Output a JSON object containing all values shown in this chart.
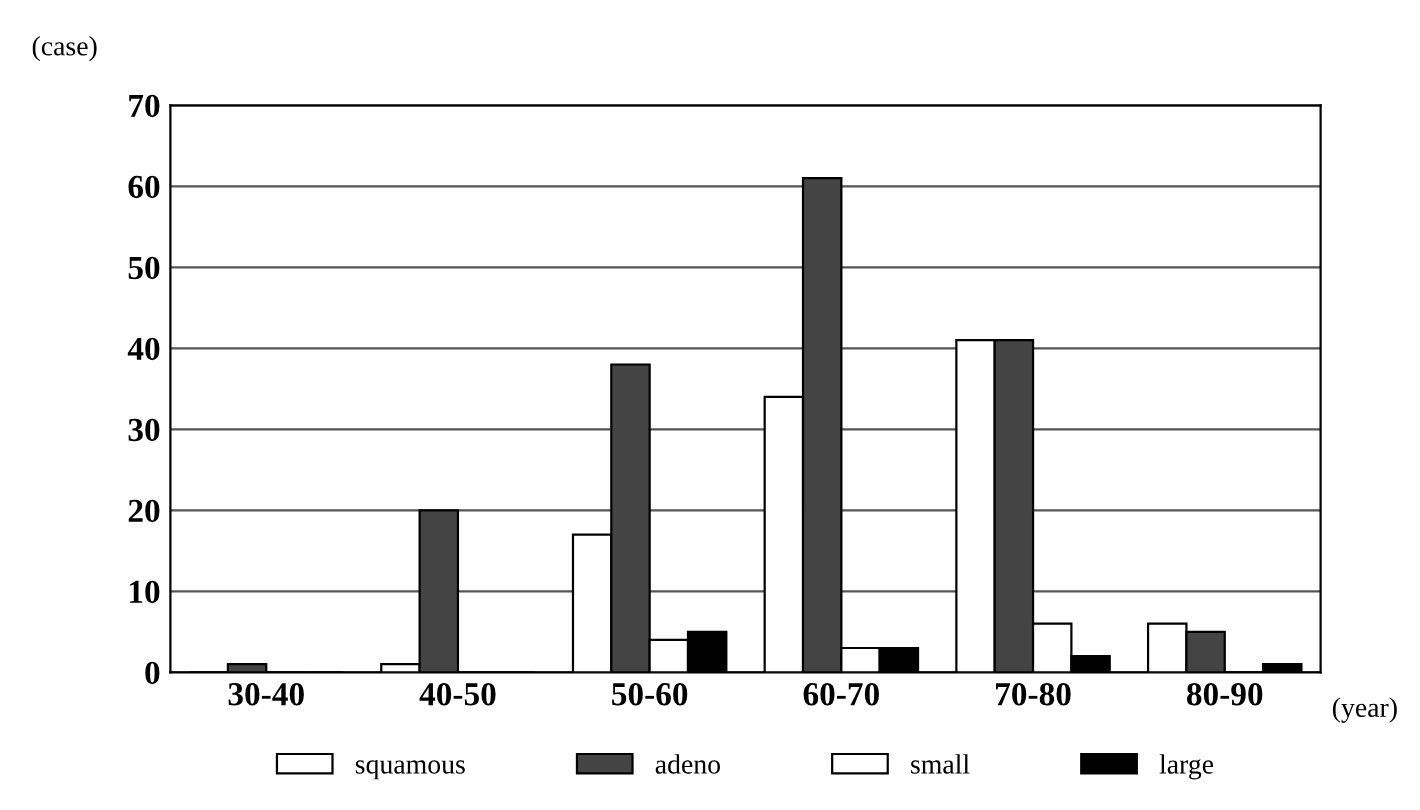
{
  "chart_data": {
    "type": "bar",
    "ylabel": "(case)",
    "xlabel": "(year)",
    "categories": [
      "30-40",
      "40-50",
      "50-60",
      "60-70",
      "70-80",
      "80-90"
    ],
    "series": [
      {
        "name": "squamous",
        "color": "#ffffff",
        "values": [
          0,
          1,
          17,
          34,
          41,
          6
        ]
      },
      {
        "name": "adeno",
        "color": "#444444",
        "values": [
          1,
          20,
          38,
          61,
          41,
          5
        ]
      },
      {
        "name": "small",
        "color": "#ffffff",
        "values": [
          0,
          0,
          4,
          3,
          6,
          0
        ]
      },
      {
        "name": "large",
        "color": "#000000",
        "values": [
          0,
          0,
          5,
          3,
          2,
          1
        ]
      }
    ],
    "ylim": [
      0,
      70
    ],
    "yticks": [
      0,
      10,
      20,
      30,
      40,
      50,
      60,
      70
    ],
    "grid": "y",
    "legend": "bottom"
  }
}
